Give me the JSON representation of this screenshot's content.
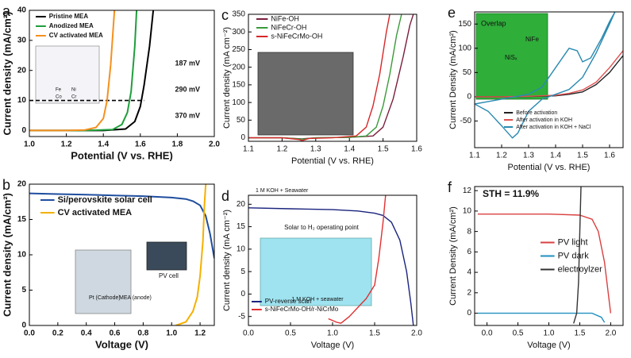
{
  "chart_data": [
    {
      "type": "line",
      "label": "a",
      "xlabel": "Potential (V vs. RHE)",
      "ylabel": "Current density (mA/cm²)",
      "xlim": [
        1.0,
        2.0
      ],
      "xticks": [
        {
          "value": 1.0,
          "label": "1.0"
        },
        1.2,
        1.4,
        1.6,
        1.8,
        {
          "value": 2.0,
          "label": "2.0"
        }
      ],
      "ylim": [
        -2,
        40
      ],
      "yticks": [
        0,
        10,
        20,
        30,
        40
      ],
      "legend": "upper left",
      "hline": 10,
      "series": [
        {
          "name": "Pristine MEA",
          "color": "#000000",
          "x": [
            1.0,
            1.4,
            1.52,
            1.57,
            1.6,
            1.62,
            1.65,
            1.67
          ],
          "values": [
            0,
            0,
            0.5,
            3,
            8,
            15,
            28,
            40
          ]
        },
        {
          "name": "Anodized MEA",
          "color": "#1f9e3c",
          "x": [
            1.0,
            1.3,
            1.45,
            1.5,
            1.53,
            1.55,
            1.57,
            1.58
          ],
          "values": [
            0,
            0,
            0.3,
            2,
            6,
            13,
            28,
            40
          ]
        },
        {
          "name": "CV activated MEA",
          "color": "#f5901e",
          "x": [
            1.0,
            1.2,
            1.3,
            1.36,
            1.4,
            1.42,
            1.44,
            1.46
          ],
          "values": [
            0,
            0,
            0.2,
            1,
            4,
            10,
            22,
            40
          ]
        }
      ],
      "annotations": [
        {
          "text": "187 mV",
          "color": "#f5901e"
        },
        {
          "text": "290 mV",
          "color": "#1f9e3c"
        },
        {
          "text": "370 mV",
          "color": "#000000"
        },
        {
          "text": "Fe"
        },
        {
          "text": "Ni"
        },
        {
          "text": "Co"
        },
        {
          "text": "Cr"
        }
      ]
    },
    {
      "type": "line",
      "label": "b",
      "xlabel": "Voltage (V)",
      "ylabel": "Current density (mA/cm²)",
      "xlim": [
        0,
        1.3
      ],
      "xticks": [
        {
          "value": 0,
          "label": "0.0"
        },
        0.2,
        0.4,
        0.6,
        0.8,
        {
          "value": 1.0,
          "label": "1.0"
        },
        1.2
      ],
      "ylim": [
        0,
        20
      ],
      "yticks": [
        0,
        5,
        10,
        15,
        20
      ],
      "legend": "upper left",
      "series": [
        {
          "name": "Si/perovskite solar cell",
          "color": "#1f4e9e",
          "x": [
            0,
            0.2,
            0.4,
            0.6,
            0.8,
            1.0,
            1.1,
            1.15,
            1.2,
            1.24,
            1.27,
            1.3
          ],
          "values": [
            18.7,
            18.6,
            18.5,
            18.4,
            18.3,
            18.1,
            17.9,
            17.6,
            17.0,
            15.5,
            13,
            9.5
          ]
        },
        {
          "name": "CV activated MEA",
          "color": "#f5b000",
          "x": [
            1.03,
            1.1,
            1.15,
            1.18,
            1.2,
            1.22,
            1.23,
            1.24
          ],
          "values": [
            0,
            0.5,
            2,
            4,
            7,
            12,
            17,
            20
          ]
        }
      ],
      "annotations": [
        {
          "text": "PV cell"
        },
        {
          "text": "Pt (Cathode)"
        },
        {
          "text": "MEA (anode)"
        }
      ]
    },
    {
      "type": "line",
      "label": "c",
      "xlabel": "Potential (V vs. RHE)",
      "ylabel": "Current density (mA cm⁻²)",
      "xlim": [
        1.1,
        1.6
      ],
      "xticks": [
        1.1,
        1.2,
        1.3,
        1.4,
        1.5,
        1.6
      ],
      "ylim": [
        -10,
        350
      ],
      "yticks": [
        0,
        50,
        100,
        150,
        200,
        250,
        300,
        350
      ],
      "legend": "upper left",
      "series": [
        {
          "name": "NiFe-OH",
          "color": "#7b1f3d",
          "x": [
            1.1,
            1.2,
            1.26,
            1.3,
            1.4,
            1.47,
            1.5,
            1.53,
            1.56,
            1.58,
            1.59
          ],
          "values": [
            0,
            0,
            -3,
            0,
            1,
            5,
            30,
            110,
            230,
            320,
            350
          ]
        },
        {
          "name": "NiFeCr-OH",
          "color": "#3a9a3a",
          "x": [
            1.1,
            1.2,
            1.26,
            1.3,
            1.4,
            1.45,
            1.48,
            1.5,
            1.52,
            1.54,
            1.555
          ],
          "values": [
            0,
            0,
            -4,
            0,
            1,
            5,
            30,
            90,
            180,
            290,
            350
          ]
        },
        {
          "name": "s-NiFeCrMo-OH",
          "color": "#d62728",
          "x": [
            1.1,
            1.2,
            1.25,
            1.26,
            1.28,
            1.35,
            1.42,
            1.45,
            1.47,
            1.49,
            1.51,
            1.52
          ],
          "values": [
            0,
            0,
            -5,
            -8,
            -2,
            0,
            5,
            30,
            90,
            180,
            300,
            350
          ]
        }
      ],
      "annotations": []
    },
    {
      "type": "line",
      "label": "d",
      "xlabel": "Voltage (V)",
      "ylabel": "Current density (mA cm⁻²)",
      "xlim": [
        0,
        2.0
      ],
      "xticks": [
        {
          "value": 0,
          "label": "0.0"
        },
        0.5,
        {
          "value": 1.0,
          "label": "1.0"
        },
        1.5,
        {
          "value": 2.0,
          "label": "2.0"
        }
      ],
      "ylim": [
        -7,
        22
      ],
      "yticks": [
        -5,
        0,
        5,
        10,
        15,
        20
      ],
      "legend": "lower left",
      "series": [
        {
          "name": "PV-reverse scan",
          "color": "#1a237e",
          "x": [
            0,
            0.5,
            1.0,
            1.3,
            1.5,
            1.6,
            1.7,
            1.8,
            1.88,
            1.93,
            1.96
          ],
          "values": [
            19.2,
            19.0,
            18.8,
            18.5,
            18.0,
            17.5,
            16,
            12,
            5,
            -2,
            -7
          ]
        },
        {
          "name": "s-NiFeCrMo-OH/r-NiCrMo",
          "color": "#e03030",
          "x": [
            0.95,
            1.05,
            1.1,
            1.2,
            1.3,
            1.4,
            1.5,
            1.55,
            1.6,
            1.63
          ],
          "values": [
            -5.5,
            -6.3,
            -6.5,
            -5,
            -3,
            -1,
            2,
            8,
            16,
            22
          ]
        }
      ],
      "annotations": [
        {
          "text": "1 M KOH + Seawater"
        },
        {
          "text": "Solar to H₂ operating point"
        },
        {
          "text": "1 M KOH + seawater"
        }
      ]
    },
    {
      "type": "line",
      "label": "e",
      "xlabel": "Potential (V vs. RHE)",
      "ylabel": "Current Density (mA/cm²)",
      "xlim": [
        1.1,
        1.65
      ],
      "xticks": [
        1.1,
        1.2,
        1.3,
        1.4,
        1.5,
        1.6
      ],
      "ylim": [
        -105,
        175
      ],
      "yticks": [
        -50,
        0,
        50,
        100,
        150
      ],
      "legend": "lower right",
      "series": [
        {
          "name": "Before activation",
          "color": "#222222",
          "x": [
            1.1,
            1.2,
            1.3,
            1.4,
            1.45,
            1.5,
            1.55,
            1.6,
            1.65
          ],
          "values": [
            0,
            0,
            0.5,
            2,
            5,
            10,
            25,
            50,
            85
          ]
        },
        {
          "name": "After activation in KOH",
          "color": "#e05050",
          "x": [
            1.1,
            1.2,
            1.3,
            1.4,
            1.45,
            1.5,
            1.55,
            1.6,
            1.65
          ],
          "values": [
            0,
            0,
            1,
            3,
            7,
            14,
            30,
            60,
            95
          ]
        },
        {
          "name": "After activation in KOH + NaCl",
          "color": "#2a8ab0",
          "x": [
            1.1,
            1.2,
            1.3,
            1.35,
            1.4,
            1.45,
            1.48,
            1.5,
            1.53,
            1.57,
            1.6,
            1.62,
            1.6,
            1.55,
            1.5,
            1.45,
            1.4,
            1.35,
            1.3,
            1.26,
            1.24,
            1.2,
            1.15,
            1.1
          ],
          "values": [
            -15,
            -5,
            5,
            20,
            60,
            100,
            95,
            72,
            80,
            120,
            155,
            175,
            150,
            90,
            40,
            15,
            5,
            -5,
            -30,
            -75,
            -85,
            -60,
            -30,
            -15
          ]
        }
      ],
      "annotations": [
        {
          "text": "Overlap"
        },
        {
          "text": "NiFe"
        },
        {
          "text": "NiSₓ"
        }
      ]
    },
    {
      "type": "line",
      "label": "f",
      "xlabel": "Voltage (V)",
      "ylabel": "Current Density (mA/cm²)",
      "xlim": [
        -0.2,
        2.2
      ],
      "xticks": [
        {
          "value": 0,
          "label": "0.0"
        },
        0.5,
        {
          "value": 1.0,
          "label": "1.0"
        },
        1.5,
        {
          "value": 2.0,
          "label": "2.0"
        }
      ],
      "ylim": [
        -1.2,
        12.4
      ],
      "yticks": [
        0,
        2,
        4,
        6,
        8,
        10,
        12
      ],
      "legend": "center right",
      "series": [
        {
          "name": "PV light",
          "color": "#d94040",
          "x": [
            -0.15,
            0.5,
            1.0,
            1.5,
            1.7,
            1.8,
            1.9,
            1.95,
            2.0
          ],
          "values": [
            9.7,
            9.7,
            9.7,
            9.6,
            9.2,
            8.0,
            5,
            2.5,
            0
          ]
        },
        {
          "name": "PV dark",
          "color": "#1f8fc0",
          "x": [
            -0.15,
            1.0,
            1.7,
            1.85,
            1.9
          ],
          "values": [
            0,
            0,
            0,
            -0.4,
            -0.9
          ]
        },
        {
          "name": "electroylzer",
          "color": "#333333",
          "x": [
            1.4,
            1.45,
            1.48,
            1.5,
            1.52
          ],
          "values": [
            -1,
            0,
            3,
            8,
            12.4
          ]
        }
      ],
      "annotations": [
        {
          "text": "STH = 11.9%"
        }
      ]
    }
  ]
}
